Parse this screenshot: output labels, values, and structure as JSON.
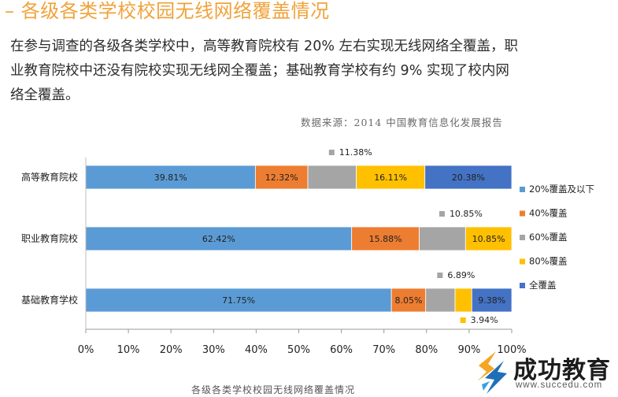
{
  "header": {
    "title": "– 各级各类学校校园无线网络覆盖情况",
    "paragraph": "在参与调查的各级各类学校中，高等教育院校有 20% 左右实现无线网络全覆盖，职业教育院校中还没有院校实现无线网全覆盖；基础教育学校有约 9% 实现了校内网络全覆盖。",
    "source": "数据来源：2014 中国教育信息化发展报告"
  },
  "caption": "各级各类学校校园无线网络覆盖情况",
  "logo": {
    "name": "成功教育",
    "url": "www.succedu.com"
  },
  "colors": {
    "accent": "#f0a23a"
  },
  "chart_data": {
    "type": "bar",
    "orientation": "horizontal",
    "stacked": true,
    "title": "各级各类学校校园无线网络覆盖情况",
    "categories": [
      "高等教育院校",
      "职业教育院校",
      "基础教育学校"
    ],
    "series": [
      {
        "name": "20%覆盖及以下",
        "color": "#5b9bd5",
        "values": [
          39.81,
          62.42,
          71.75
        ],
        "labels": [
          "39.81%",
          "62.42%",
          "71.75%"
        ]
      },
      {
        "name": "40%覆盖",
        "color": "#ed7d31",
        "values": [
          12.32,
          15.88,
          8.05
        ],
        "labels": [
          "12.32%",
          "15.88%",
          "8.05%"
        ]
      },
      {
        "name": "60%覆盖",
        "color": "#a5a5a5",
        "values": [
          11.38,
          10.85,
          6.89
        ],
        "labels": [
          "11.38%",
          "10.85%",
          "6.89%"
        ]
      },
      {
        "name": "80%覆盖",
        "color": "#ffc000",
        "values": [
          16.11,
          10.85,
          3.94
        ],
        "labels": [
          "16.11%",
          "10.85%",
          "3.94%"
        ]
      },
      {
        "name": "全覆盖",
        "color": "#4472c4",
        "values": [
          20.38,
          0,
          9.38
        ],
        "labels": [
          "20.38%",
          "",
          "9.38%"
        ]
      }
    ],
    "xlim": [
      0,
      100
    ],
    "xticks": [
      "0%",
      "10%",
      "20%",
      "30%",
      "40%",
      "50%",
      "60%",
      "70%",
      "80%",
      "90%",
      "100%"
    ],
    "xlabel": "",
    "ylabel": "",
    "legend": "right",
    "grid": false
  }
}
